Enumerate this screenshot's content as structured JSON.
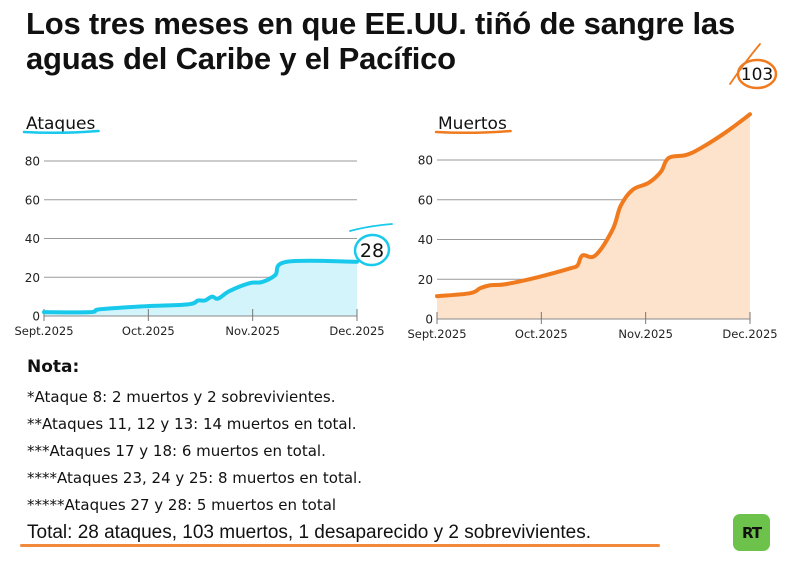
{
  "title": "Los tres meses en que EE.UU. tiñó de sangre las aguas del Caribe y el Pacífico",
  "colors": {
    "attacks_line": "#18c9ec",
    "attacks_fill": "#d3f4fb",
    "deaths_line": "#f07a1e",
    "deaths_fill": "#fde2cc",
    "grid": "#9a9a9a",
    "logo_green": "#6cc24a"
  },
  "chart_data": [
    {
      "type": "area",
      "title": "Ataques",
      "xlabel": "",
      "ylabel": "",
      "ylim": [
        0,
        80
      ],
      "yticks": [
        0,
        20,
        40,
        60,
        80
      ],
      "xticks": [
        "Sept.2025",
        "Oct.2025",
        "Nov.2025",
        "Dec.2025"
      ],
      "grid": true,
      "x_unit": "fraction of period Sept.2025 to Dec.2025",
      "series": [
        {
          "name": "Ataques",
          "x": [
            0.0,
            0.147,
            0.179,
            0.319,
            0.46,
            0.492,
            0.514,
            0.537,
            0.556,
            0.594,
            0.658,
            0.696,
            0.738,
            0.776,
            1.0
          ],
          "values": [
            2,
            2,
            3.5,
            5,
            6,
            8,
            8,
            10,
            9,
            13,
            17,
            17.5,
            21,
            28,
            28
          ]
        }
      ],
      "annotation": "28"
    },
    {
      "type": "area",
      "title": "Muertos",
      "xlabel": "",
      "ylabel": "",
      "ylim": [
        0,
        80
      ],
      "yticks": [
        0,
        20,
        40,
        60,
        80
      ],
      "xticks": [
        "Sept.2025",
        "Oct.2025",
        "Nov.2025",
        "Dec.2025"
      ],
      "grid": true,
      "x_unit": "fraction of period Sept.2025 to Dec.2025",
      "series": [
        {
          "name": "Muertos",
          "x": [
            0.0,
            0.106,
            0.138,
            0.17,
            0.218,
            0.321,
            0.426,
            0.449,
            0.465,
            0.506,
            0.561,
            0.587,
            0.625,
            0.676,
            0.715,
            0.74,
            0.795,
            0.843,
            0.923,
            1.0
          ],
          "values": [
            11.5,
            13,
            15.5,
            17,
            17.5,
            21,
            25.5,
            27,
            32,
            32,
            45,
            57,
            65,
            68.5,
            74,
            81,
            82.5,
            86,
            94,
            103
          ]
        }
      ],
      "annotation": "103"
    }
  ],
  "notes": {
    "heading": "Nota:",
    "items": [
      "*Ataque 8: 2 muertos y 2 sobrevivientes.",
      "**Ataques 11, 12 y 13: 14 muertos en total.",
      "***Ataques 17 y 18: 6 muertos en total.",
      "****Ataques 23, 24 y 25: 8 muertos en total.",
      "*****Ataques 27 y 28: 5 muertos en total"
    ]
  },
  "total": "Total: 28 ataques, 103 muertos, 1 desaparecido y 2 sobrevivientes.",
  "logo": "RT"
}
